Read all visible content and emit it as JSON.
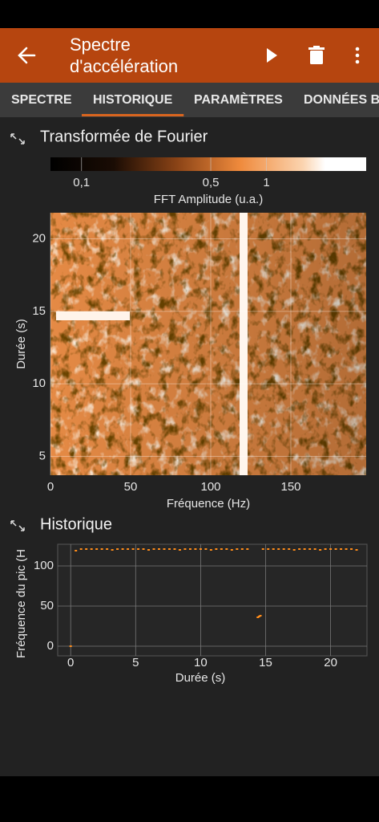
{
  "app_bar": {
    "title_lines": [
      "Spectre",
      "d'accélération"
    ]
  },
  "tabs": [
    "SPECTRE",
    "HISTORIQUE",
    "PARAMÈTRES",
    "DONNÉES B"
  ],
  "selected_tab": 1,
  "chart_data": [
    {
      "type": "heatmap",
      "title": "Transformée de Fourier",
      "colorbar": {
        "label": "FFT Amplitude (u.a.)",
        "log": true,
        "lim": [
          0.068,
          3.46
        ],
        "ticks": [
          {
            "value": 0.1,
            "label": "0,1"
          },
          {
            "value": 0.5,
            "label": "0,5"
          },
          1
        ]
      },
      "xlabel": "Fréquence (Hz)",
      "ylabel": "Durée (s)",
      "xlim": [
        0,
        197
      ],
      "ylim": [
        3.7,
        21.8
      ],
      "xticks": [
        0,
        50,
        100,
        150
      ],
      "yticks": [
        5,
        10,
        15,
        20
      ],
      "grid": true
    },
    {
      "type": "scatter",
      "title": "Historique",
      "color": "#ff8c1a",
      "xlabel": "Durée (s)",
      "ylabel": "Fréquence du pic (H",
      "xlim": [
        -1,
        22.8
      ],
      "ylim": [
        -12,
        127
      ],
      "xticks": [
        0,
        5,
        10,
        15,
        20
      ],
      "yticks": [
        0,
        50,
        100
      ],
      "grid": true,
      "x": [
        0,
        0.4,
        0.8,
        1.2,
        1.6,
        2,
        2.4,
        2.8,
        3.2,
        3.6,
        4,
        4.4,
        4.8,
        5.2,
        5.6,
        6,
        6.4,
        6.8,
        7.2,
        7.6,
        8,
        8.4,
        8.8,
        9.2,
        9.6,
        10,
        10.4,
        10.8,
        11.2,
        11.6,
        12,
        12.4,
        12.8,
        13.2,
        13.6,
        14.4,
        14.5,
        14.6,
        14.8,
        15.2,
        15.6,
        16,
        16.4,
        16.8,
        17.2,
        17.6,
        18,
        18.4,
        18.8,
        19.2,
        19.6,
        20,
        20.4,
        20.8,
        21.2,
        21.6,
        22
      ],
      "values": [
        0,
        119,
        121,
        121,
        121,
        121,
        121,
        121,
        120,
        121,
        121,
        121,
        121,
        121,
        121,
        120,
        121,
        121,
        121,
        121,
        121,
        120,
        121,
        121,
        121,
        121,
        121,
        120,
        121,
        121,
        121,
        120,
        121,
        121,
        121,
        36,
        37,
        38,
        121,
        121,
        121,
        121,
        121,
        121,
        120,
        121,
        121,
        121,
        121,
        120,
        121,
        121,
        121,
        121,
        121,
        121,
        120
      ]
    }
  ]
}
